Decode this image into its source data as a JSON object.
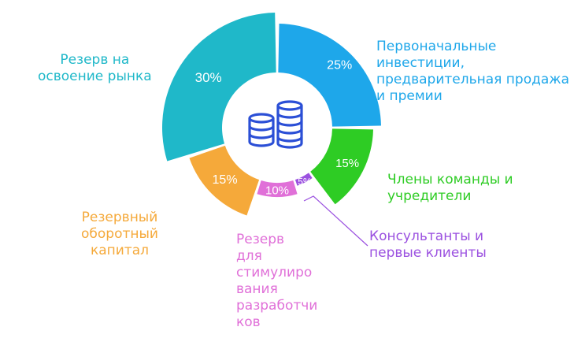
{
  "chart_data": {
    "type": "pie",
    "variant": "donut",
    "slices": [
      {
        "label": "Первоначальные\nинвестиции,\nпредварительная продажа\nи премии",
        "value": 25,
        "value_label": "25%",
        "color": "#1ea7ea"
      },
      {
        "label": "Члены команды и\nучредители",
        "value": 15,
        "value_label": "15%",
        "color": "#2ecc24"
      },
      {
        "label": "Консультанты и\nпервые клиенты",
        "value": 5,
        "value_label": "5%",
        "color": "#9b51e0"
      },
      {
        "label": "Резерв\nдля\nстимулиро\nвания\nразработчи\nков",
        "value": 10,
        "value_label": "10%",
        "color": "#e070d8"
      },
      {
        "label": "Резервный\nоборотный\nкапитал",
        "value": 15,
        "value_label": "15%",
        "color": "#f5a93a"
      },
      {
        "label": "Резерв на\nосвоение рынка",
        "value": 30,
        "value_label": "30%",
        "color": "#1fb8c9"
      }
    ],
    "center_icon": "coins-stack-icon",
    "center_icon_color": "#2b4fd6"
  }
}
